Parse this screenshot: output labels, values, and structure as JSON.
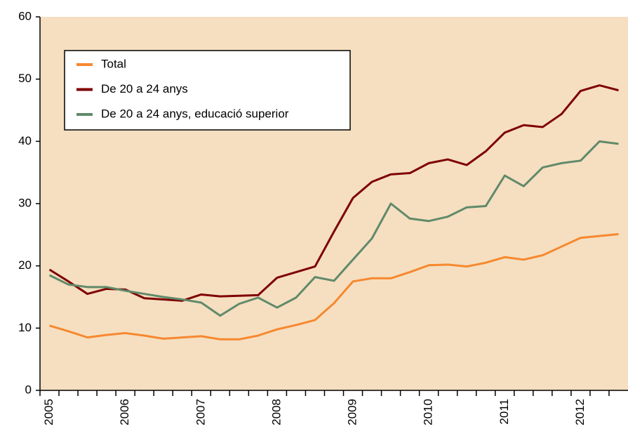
{
  "chart_data": {
    "type": "line",
    "categories": [
      "2005",
      null,
      null,
      null,
      "2006",
      null,
      null,
      null,
      "2007",
      null,
      null,
      null,
      "2008",
      null,
      null,
      null,
      "2009",
      null,
      null,
      null,
      "2010",
      null,
      null,
      null,
      "2011",
      null,
      null,
      null,
      "2012",
      null,
      null
    ],
    "series": [
      {
        "name": "Total",
        "color": "#f7882f",
        "values": [
          10.4,
          9.5,
          8.5,
          8.9,
          9.2,
          8.8,
          8.3,
          8.5,
          8.7,
          8.2,
          8.2,
          8.8,
          9.8,
          10.5,
          11.3,
          14.0,
          17.5,
          18.0,
          18.0,
          19.0,
          20.1,
          20.2,
          19.9,
          20.5,
          21.4,
          21.0,
          21.7,
          23.1,
          24.5,
          24.8,
          25.1
        ]
      },
      {
        "name": "De 20 a 24 anys",
        "color": "#7f0000",
        "values": [
          19.4,
          17.5,
          15.5,
          16.3,
          16.2,
          14.8,
          14.6,
          14.4,
          15.4,
          15.1,
          15.2,
          15.3,
          18.1,
          19.0,
          19.9,
          25.5,
          30.9,
          33.5,
          34.7,
          34.9,
          36.5,
          37.1,
          36.2,
          38.4,
          41.4,
          42.6,
          42.3,
          44.4,
          48.1,
          49.0,
          48.2
        ]
      },
      {
        "name": "De 20 a 24 anys, educació superior",
        "color": "#608a6b",
        "values": [
          18.5,
          17.0,
          16.6,
          16.6,
          16.0,
          15.5,
          15.0,
          14.6,
          14.1,
          12.0,
          13.9,
          14.9,
          13.3,
          14.9,
          18.2,
          17.6,
          21.0,
          24.4,
          30.0,
          27.6,
          27.2,
          27.9,
          29.4,
          29.6,
          34.5,
          32.8,
          35.8,
          36.5,
          36.9,
          40.0,
          39.6
        ]
      }
    ],
    "ylim": [
      0,
      60
    ],
    "yticks": [
      0,
      10,
      20,
      30,
      40,
      50,
      60
    ],
    "background": "#f5dfc0",
    "legend": "upper left"
  }
}
